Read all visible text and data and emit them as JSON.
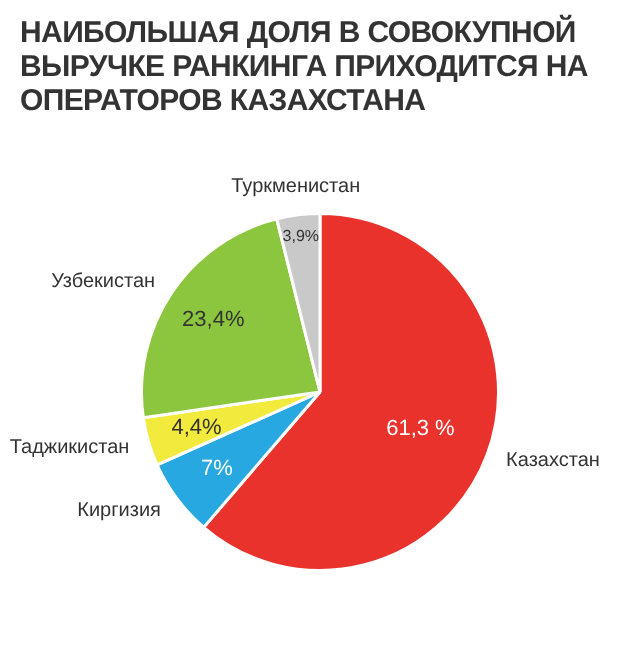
{
  "chart_data": {
    "type": "pie",
    "title": "НАИБОЛЬШАЯ ДОЛЯ В СОВОКУПНОЙ ВЫРУЧКЕ РАНКИНГА ПРИХОДИТСЯ НА ОПЕРАТОРОВ КАЗАХСТАНА",
    "categories": [
      "Казахстан",
      "Киргизия",
      "Таджикистан",
      "Узбекистан",
      "Туркменистан"
    ],
    "values": [
      61.3,
      7,
      4.4,
      23.4,
      3.9
    ],
    "colors": [
      "#e8322b",
      "#27a8e0",
      "#f2ea3c",
      "#8cc63f",
      "#c9c9c9"
    ],
    "value_labels": [
      "61,3 %",
      "7%",
      "4,4%",
      "23,4%",
      "3,9%"
    ],
    "legend": false
  }
}
